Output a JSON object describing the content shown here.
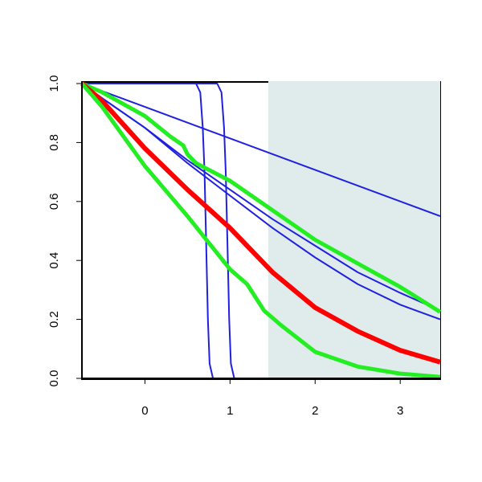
{
  "chart_data": {
    "type": "line",
    "xlim": [
      -0.74,
      3.47
    ],
    "ylim": [
      0,
      1
    ],
    "xticks": [
      0,
      1,
      2,
      3
    ],
    "yticks": [
      {
        "value": 0,
        "label": "0.0"
      },
      {
        "value": 0.2,
        "label": "0.2"
      },
      {
        "value": 0.4,
        "label": "0.4"
      },
      {
        "value": 0.6,
        "label": "0.6"
      },
      {
        "value": 0.8,
        "label": "0.8"
      },
      {
        "value": 1,
        "label": "1.0"
      }
    ],
    "shaded_region": {
      "x": [
        1.45,
        3.47
      ],
      "color": "#e0ecec"
    },
    "series": [
      {
        "color": "#2020e0",
        "width": 2,
        "x": [
          -0.74,
          3.47
        ],
        "values": [
          1,
          0.55
        ]
      },
      {
        "color": "#2020e0",
        "width": 2,
        "x": [
          -0.74,
          -0.5,
          0,
          0.5,
          1,
          1.5,
          2,
          2.5,
          3,
          3.47
        ],
        "values": [
          1,
          0.95,
          0.85,
          0.74,
          0.64,
          0.54,
          0.45,
          0.36,
          0.29,
          0.23
        ]
      },
      {
        "color": "#2020e0",
        "width": 2,
        "x": [
          -0.74,
          -0.5,
          0,
          0.5,
          1,
          1.5,
          2,
          2.5,
          3,
          3.47
        ],
        "values": [
          1,
          0.95,
          0.85,
          0.73,
          0.62,
          0.51,
          0.41,
          0.32,
          0.25,
          0.2
        ]
      },
      {
        "color": "#2020e0",
        "width": 2,
        "x": [
          -0.74,
          0.6,
          0.65,
          0.68,
          0.7,
          0.72,
          0.74,
          0.76,
          0.8,
          3.47
        ],
        "values": [
          1,
          1,
          0.97,
          0.85,
          0.7,
          0.45,
          0.2,
          0.05,
          0,
          0
        ]
      },
      {
        "color": "#2020e0",
        "width": 2,
        "x": [
          -0.74,
          0.85,
          0.9,
          0.93,
          0.95,
          0.97,
          0.99,
          1.01,
          1.05,
          3.47
        ],
        "values": [
          1,
          1,
          0.97,
          0.85,
          0.7,
          0.45,
          0.2,
          0.05,
          0,
          0
        ]
      },
      {
        "color": "#22ee22",
        "width": 5,
        "x": [
          -0.74,
          -0.5,
          0,
          0.3,
          0.45,
          0.5,
          0.6,
          1,
          1.5,
          2,
          2.5,
          3,
          3.47
        ],
        "values": [
          1,
          0.97,
          0.89,
          0.82,
          0.79,
          0.76,
          0.73,
          0.67,
          0.57,
          0.47,
          0.39,
          0.31,
          0.225
        ]
      },
      {
        "color": "#ff0000",
        "width": 6,
        "x": [
          -0.74,
          -0.5,
          0,
          0.5,
          1,
          1.5,
          2,
          2.5,
          3,
          3.47
        ],
        "values": [
          1,
          0.94,
          0.78,
          0.64,
          0.51,
          0.36,
          0.24,
          0.16,
          0.095,
          0.055
        ]
      },
      {
        "color": "#22ee22",
        "width": 5,
        "x": [
          -0.74,
          -0.5,
          0,
          0.5,
          1,
          1.2,
          1.4,
          1.6,
          2,
          2.5,
          3,
          3.47
        ],
        "values": [
          1,
          0.92,
          0.72,
          0.55,
          0.37,
          0.32,
          0.23,
          0.18,
          0.09,
          0.04,
          0.016,
          0.005
        ]
      }
    ]
  }
}
